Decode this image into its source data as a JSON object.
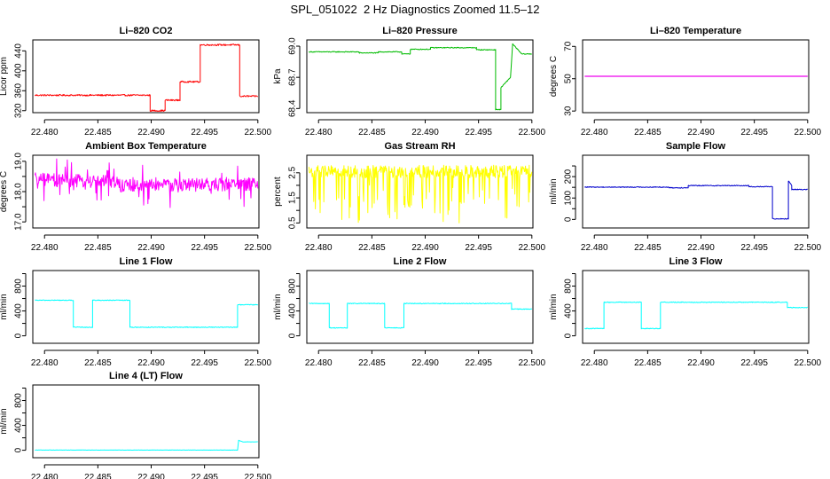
{
  "page": {
    "title": "SPL_051022  2 Hz Diagnostics Zoomed 11.5–12"
  },
  "x_ticks": [
    "22.480",
    "22.485",
    "22.490",
    "22.495",
    "22.500"
  ],
  "chart_data": [
    {
      "type": "line",
      "title": "Li–820 CO2",
      "ylabel": "Licor ppm",
      "color": "#ff0000",
      "xlim": [
        22.4789,
        22.5001
      ],
      "ylim": [
        316,
        462
      ],
      "yticks": [
        320,
        360,
        400,
        440
      ],
      "series": [
        {
          "noise": 1.5,
          "segments": [
            [
              22.4791,
              22.4899,
              351,
              351
            ],
            [
              22.4899,
              22.4913,
              320,
              320
            ],
            [
              22.4913,
              22.4927,
              341,
              341
            ],
            [
              22.4927,
              22.4946,
              378,
              378
            ],
            [
              22.4946,
              22.4983,
              452,
              452
            ],
            [
              22.4983,
              22.5,
              349,
              349
            ]
          ]
        }
      ]
    },
    {
      "type": "line",
      "title": "Li–820 Pressure",
      "ylabel": "kPa",
      "color": "#00bb00",
      "xlim": [
        22.4789,
        22.5001
      ],
      "ylim": [
        68.36,
        69.06
      ],
      "yticks": [
        68.4,
        68.7,
        69.0
      ],
      "ytick_labels": [
        "68.4",
        "68.7",
        "69.0"
      ],
      "series": [
        {
          "noise": 0.004,
          "segments": [
            [
              22.4791,
              22.4838,
              68.945,
              68.945
            ],
            [
              22.4838,
              22.4856,
              68.935,
              68.935
            ],
            [
              22.4856,
              22.4878,
              68.945,
              68.945
            ],
            [
              22.4878,
              22.4886,
              68.925,
              68.925
            ],
            [
              22.4886,
              22.4905,
              68.97,
              68.97
            ],
            [
              22.4905,
              22.4948,
              68.985,
              68.985
            ],
            [
              22.4948,
              22.4966,
              68.965,
              68.965
            ],
            [
              22.4966,
              22.4971,
              68.39,
              68.39
            ],
            [
              22.4971,
              22.498,
              68.6,
              68.7
            ],
            [
              22.498,
              22.4982,
              68.7,
              69.02
            ],
            [
              22.4982,
              22.499,
              69.02,
              68.93
            ],
            [
              22.499,
              22.5,
              68.925,
              68.925
            ]
          ]
        }
      ]
    },
    {
      "type": "line",
      "title": "Li–820 Temperature",
      "ylabel": "degrees C",
      "color": "#ee00ee",
      "xlim": [
        22.4789,
        22.5001
      ],
      "ylim": [
        29,
        74
      ],
      "yticks": [
        30,
        50,
        70
      ],
      "series": [
        {
          "noise": 0,
          "segments": [
            [
              22.4791,
              22.5,
              51.5,
              51.5
            ]
          ]
        }
      ]
    },
    {
      "type": "line",
      "title": "Ambient Box Temperature",
      "ylabel": "degrees C",
      "color": "#ff00ff",
      "xlim": [
        22.4789,
        22.5001
      ],
      "ylim": [
        16.8,
        19.2
      ],
      "yticks": [
        17.0,
        17.5,
        18.0,
        18.5,
        19.0
      ],
      "ytick_labels": [
        "17.0",
        "",
        "18.0",
        "",
        "19.0"
      ],
      "series": [
        {
          "noise": 0.22,
          "spikes": 40,
          "spike_size": 0.6,
          "segments": [
            [
              22.4791,
              22.487,
              18.4,
              18.3
            ],
            [
              22.487,
              22.5,
              18.2,
              18.25
            ]
          ]
        }
      ]
    },
    {
      "type": "line",
      "title": "Gas Stream RH",
      "ylabel": "percent",
      "color": "#ffff00",
      "xlim": [
        22.4789,
        22.5001
      ],
      "ylim": [
        0.3,
        3.2
      ],
      "yticks": [
        0.5,
        1.0,
        1.5,
        2.0,
        2.5
      ],
      "ytick_labels": [
        "0.5",
        "",
        "1.5",
        "",
        "2.5"
      ],
      "series": [
        {
          "noise": 0.25,
          "spikes": 55,
          "spike_size": 1.9,
          "spike_dir": -1,
          "segments": [
            [
              22.4791,
              22.5,
              2.55,
              2.55
            ]
          ]
        }
      ]
    },
    {
      "type": "line",
      "title": "Sample Flow",
      "ylabel": "ml/min",
      "color": "#0000cc",
      "xlim": [
        22.4789,
        22.5001
      ],
      "ylim": [
        -40,
        300
      ],
      "yticks": [
        0,
        50,
        100,
        150,
        200,
        250
      ],
      "ytick_labels": [
        "0",
        "",
        "100",
        "",
        "200",
        ""
      ],
      "series": [
        {
          "noise": 2,
          "segments": [
            [
              22.4791,
              22.487,
              151,
              151
            ],
            [
              22.487,
              22.4888,
              148,
              148
            ],
            [
              22.4888,
              22.4945,
              158,
              158
            ],
            [
              22.4945,
              22.4967,
              153,
              153
            ],
            [
              22.4967,
              22.4982,
              3,
              3
            ],
            [
              22.4982,
              22.4985,
              180,
              160
            ],
            [
              22.4985,
              22.5,
              140,
              140
            ]
          ]
        }
      ]
    },
    {
      "type": "line",
      "title": "Line 1 Flow",
      "ylabel": "ml/min",
      "color": "#00ffff",
      "xlim": [
        22.4789,
        22.5001
      ],
      "ylim": [
        -120,
        1050
      ],
      "yticks": [
        0,
        200,
        400,
        600,
        800,
        1000
      ],
      "ytick_labels": [
        "0",
        "",
        "400",
        "",
        "800",
        ""
      ],
      "series": [
        {
          "noise": 6,
          "segments": [
            [
              22.4791,
              22.4827,
              572,
              572
            ],
            [
              22.4827,
              22.4845,
              138,
              138
            ],
            [
              22.4845,
              22.488,
              572,
              572
            ],
            [
              22.488,
              22.4981,
              138,
              138
            ],
            [
              22.4981,
              22.5,
              500,
              500
            ]
          ]
        }
      ]
    },
    {
      "type": "line",
      "title": "Line 2 Flow",
      "ylabel": "ml/min",
      "color": "#00ffff",
      "xlim": [
        22.4789,
        22.5001
      ],
      "ylim": [
        -120,
        1050
      ],
      "yticks": [
        0,
        200,
        400,
        600,
        800,
        1000
      ],
      "ytick_labels": [
        "0",
        "",
        "400",
        "",
        "800",
        ""
      ],
      "series": [
        {
          "noise": 6,
          "segments": [
            [
              22.4791,
              22.481,
              520,
              520
            ],
            [
              22.481,
              22.4827,
              128,
              128
            ],
            [
              22.4827,
              22.4862,
              520,
              520
            ],
            [
              22.4862,
              22.488,
              128,
              128
            ],
            [
              22.488,
              22.4981,
              520,
              520
            ],
            [
              22.4981,
              22.5,
              430,
              430
            ]
          ]
        }
      ]
    },
    {
      "type": "line",
      "title": "Line 3 Flow",
      "ylabel": "ml/min",
      "color": "#00ffff",
      "xlim": [
        22.4789,
        22.5001
      ],
      "ylim": [
        -120,
        1050
      ],
      "yticks": [
        0,
        200,
        400,
        600,
        800,
        1000
      ],
      "ytick_labels": [
        "0",
        "",
        "400",
        "",
        "800",
        ""
      ],
      "series": [
        {
          "noise": 6,
          "segments": [
            [
              22.4791,
              22.4809,
              118,
              118
            ],
            [
              22.4809,
              22.4844,
              540,
              540
            ],
            [
              22.4844,
              22.4862,
              118,
              118
            ],
            [
              22.4862,
              22.4981,
              540,
              540
            ],
            [
              22.4981,
              22.5,
              455,
              455
            ]
          ]
        }
      ]
    },
    {
      "type": "line",
      "title": "Line 4 (LT) Flow",
      "ylabel": "ml/min",
      "color": "#00ffff",
      "xlim": [
        22.4789,
        22.5001
      ],
      "ylim": [
        -120,
        1050
      ],
      "yticks": [
        0,
        200,
        400,
        600,
        800,
        1000
      ],
      "ytick_labels": [
        "0",
        "",
        "400",
        "",
        "800",
        ""
      ],
      "series": [
        {
          "noise": 2,
          "segments": [
            [
              22.4791,
              22.4981,
              3,
              3
            ],
            [
              22.4981,
              22.4982,
              3,
              160
            ],
            [
              22.4982,
              22.4986,
              160,
              135
            ],
            [
              22.4986,
              22.5,
              135,
              135
            ]
          ]
        }
      ]
    }
  ]
}
